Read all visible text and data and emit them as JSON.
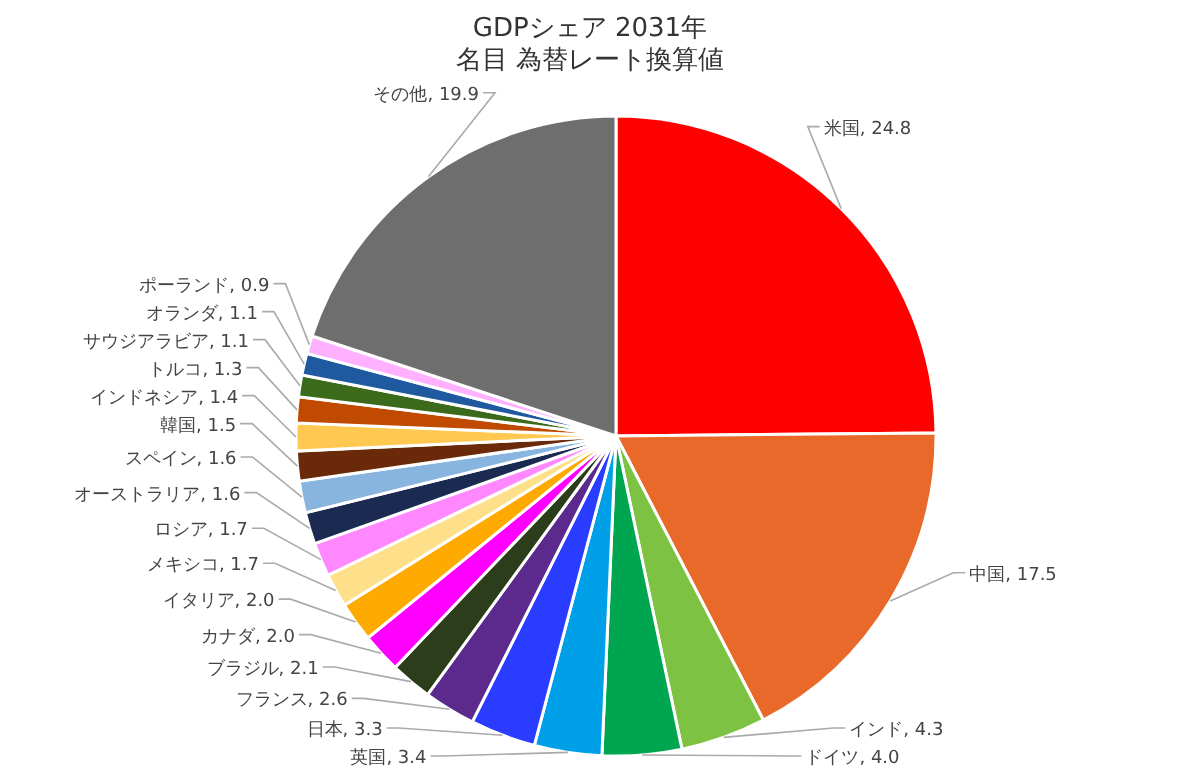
{
  "chart_data": {
    "type": "pie",
    "title": "GDPシェア 2031年",
    "subtitle": "名目 為替レート換算値",
    "categories": [
      "米国",
      "中国",
      "インド",
      "ドイツ",
      "英国",
      "日本",
      "フランス",
      "ブラジル",
      "カナダ",
      "イタリア",
      "メキシコ",
      "ロシア",
      "オーストラリア",
      "スペイン",
      "韓国",
      "インドネシア",
      "トルコ",
      "サウジアラビア",
      "オランダ",
      "ポーランド",
      "その他"
    ],
    "values": [
      24.8,
      17.5,
      4.3,
      4.0,
      3.4,
      3.3,
      2.6,
      2.1,
      2.0,
      2.0,
      1.7,
      1.7,
      1.6,
      1.6,
      1.5,
      1.4,
      1.3,
      1.1,
      1.1,
      0.9,
      19.9
    ],
    "value_labels": [
      "24.8",
      "17.5",
      "4.3",
      "4.0",
      "3.4",
      "3.3",
      "2.6",
      "2.1",
      "2.0",
      "2.0",
      "1.7",
      "1.7",
      "1.6",
      "1.6",
      "1.5",
      "1.4",
      "1.3",
      "1.1",
      "1.1",
      "0.9",
      "19.9"
    ],
    "colors": [
      "#ff0000",
      "#e8692a",
      "#7dc242",
      "#00a550",
      "#00a0e9",
      "#2a3cff",
      "#5b2a8c",
      "#2b3d1a",
      "#ff00ff",
      "#ffaa00",
      "#ffe08a",
      "#ff88ff",
      "#1a2a50",
      "#88b4e0",
      "#6a2a0a",
      "#ffc850",
      "#c04a00",
      "#3a6a1a",
      "#1f5aa0",
      "#ffb0ff",
      "#6e6e6e"
    ],
    "legend": false
  }
}
